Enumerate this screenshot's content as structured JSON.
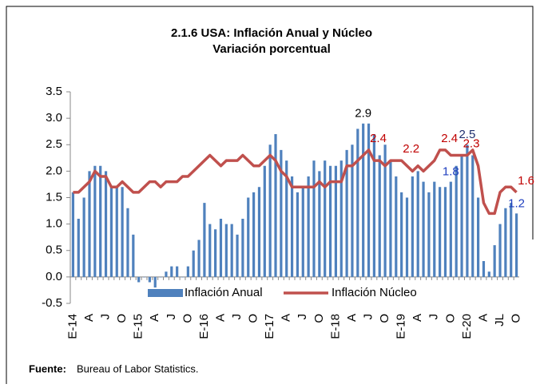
{
  "chart_data": {
    "type": "bar-line",
    "title": "2.1.6  USA: Inflación Anual y Núcleo",
    "subtitle": "Variación porcentual",
    "categories": [
      "E-14",
      null,
      null,
      "A",
      null,
      null,
      "J",
      null,
      null,
      "O",
      null,
      null,
      "E-15",
      null,
      null,
      "A",
      null,
      null,
      "J",
      null,
      null,
      "O",
      null,
      null,
      "E-16",
      null,
      null,
      "A",
      null,
      null,
      "J",
      null,
      null,
      "O",
      null,
      null,
      "E-17",
      null,
      null,
      "A",
      null,
      null,
      "J",
      null,
      null,
      "O",
      null,
      null,
      "E-18",
      null,
      null,
      "A",
      null,
      null,
      "J",
      null,
      null,
      "O",
      null,
      null,
      "E-19",
      null,
      null,
      "A",
      null,
      null,
      "J",
      null,
      null,
      "O",
      null,
      null,
      "E-20",
      null,
      null,
      "A",
      null,
      null,
      "JL",
      null,
      null,
      "O"
    ],
    "series": [
      {
        "name": "Inflación Anual",
        "type": "bar",
        "color": "#4f81bd",
        "values": [
          1.6,
          1.1,
          1.5,
          2.0,
          2.1,
          2.1,
          2.0,
          1.7,
          1.7,
          1.7,
          1.3,
          0.8,
          -0.1,
          0.0,
          -0.1,
          -0.2,
          0.0,
          0.1,
          0.2,
          0.2,
          0.0,
          0.2,
          0.5,
          0.7,
          1.4,
          1.0,
          0.9,
          1.1,
          1.0,
          1.0,
          0.8,
          1.1,
          1.5,
          1.6,
          1.7,
          2.1,
          2.5,
          2.7,
          2.4,
          2.2,
          1.9,
          1.6,
          1.7,
          1.9,
          2.2,
          2.0,
          2.2,
          2.1,
          2.1,
          2.2,
          2.4,
          2.5,
          2.8,
          2.9,
          2.9,
          2.7,
          2.3,
          2.5,
          2.2,
          1.9,
          1.6,
          1.5,
          1.9,
          2.0,
          1.8,
          1.6,
          1.8,
          1.7,
          1.7,
          1.8,
          2.1,
          2.3,
          2.5,
          2.3,
          1.5,
          0.3,
          0.1,
          0.6,
          1.0,
          1.3,
          1.4,
          1.2
        ],
        "value_labels": [
          null,
          null,
          null,
          null,
          null,
          null,
          null,
          null,
          null,
          null,
          null,
          null,
          null,
          null,
          null,
          null,
          null,
          null,
          null,
          null,
          null,
          null,
          null,
          null,
          null,
          null,
          null,
          null,
          null,
          null,
          null,
          null,
          null,
          null,
          null,
          null,
          null,
          null,
          null,
          null,
          null,
          null,
          null,
          null,
          null,
          null,
          null,
          null,
          null,
          null,
          null,
          null,
          null,
          "2.9",
          null,
          null,
          null,
          null,
          null,
          null,
          null,
          null,
          null,
          null,
          null,
          null,
          null,
          null,
          null,
          "1.8",
          null,
          null,
          "2.5",
          null,
          null,
          null,
          null,
          null,
          null,
          null,
          null,
          "1.2"
        ],
        "value_label_colors": [
          null,
          null,
          null,
          null,
          null,
          null,
          null,
          null,
          null,
          null,
          null,
          null,
          null,
          null,
          null,
          null,
          null,
          null,
          null,
          null,
          null,
          null,
          null,
          null,
          null,
          null,
          null,
          null,
          null,
          null,
          null,
          null,
          null,
          null,
          null,
          null,
          null,
          null,
          null,
          null,
          null,
          null,
          null,
          null,
          null,
          null,
          null,
          null,
          null,
          null,
          null,
          null,
          null,
          "#000000",
          null,
          null,
          null,
          null,
          null,
          null,
          null,
          null,
          null,
          null,
          null,
          null,
          null,
          null,
          null,
          "#1f3fbf",
          null,
          null,
          "#1f2f6f",
          null,
          null,
          null,
          null,
          null,
          null,
          null,
          null,
          "#1f3fbf"
        ]
      },
      {
        "name": "Inflación Núcleo",
        "type": "line",
        "color": "#c0504d",
        "values": [
          1.6,
          1.6,
          1.7,
          1.8,
          2.0,
          1.9,
          1.9,
          1.7,
          1.7,
          1.8,
          1.7,
          1.6,
          1.6,
          1.7,
          1.8,
          1.8,
          1.7,
          1.8,
          1.8,
          1.8,
          1.9,
          1.9,
          2.0,
          2.1,
          2.2,
          2.3,
          2.2,
          2.1,
          2.2,
          2.2,
          2.2,
          2.3,
          2.2,
          2.1,
          2.1,
          2.2,
          2.3,
          2.2,
          2.0,
          1.9,
          1.7,
          1.7,
          1.7,
          1.7,
          1.7,
          1.8,
          1.7,
          1.8,
          1.8,
          1.8,
          2.1,
          2.1,
          2.2,
          2.3,
          2.4,
          2.2,
          2.2,
          2.1,
          2.2,
          2.2,
          2.2,
          2.1,
          2.0,
          2.1,
          2.0,
          2.1,
          2.2,
          2.4,
          2.4,
          2.3,
          2.3,
          2.3,
          2.3,
          2.4,
          2.1,
          1.4,
          1.2,
          1.2,
          1.6,
          1.7,
          1.7,
          1.6
        ],
        "value_labels": [
          null,
          null,
          null,
          null,
          null,
          null,
          null,
          null,
          null,
          null,
          null,
          null,
          null,
          null,
          null,
          null,
          null,
          null,
          null,
          null,
          null,
          null,
          null,
          null,
          null,
          null,
          null,
          null,
          null,
          null,
          null,
          null,
          null,
          null,
          null,
          null,
          null,
          null,
          null,
          null,
          null,
          null,
          null,
          null,
          null,
          null,
          null,
          null,
          null,
          null,
          null,
          null,
          null,
          null,
          "2.4",
          null,
          null,
          null,
          null,
          null,
          "2.2",
          null,
          null,
          null,
          null,
          null,
          null,
          "2.4",
          null,
          null,
          null,
          "2.3",
          null,
          null,
          null,
          null,
          null,
          null,
          null,
          null,
          null,
          "1.6"
        ],
        "value_label_colors": [
          null,
          null,
          null,
          null,
          null,
          null,
          null,
          null,
          null,
          null,
          null,
          null,
          null,
          null,
          null,
          null,
          null,
          null,
          null,
          null,
          null,
          null,
          null,
          null,
          null,
          null,
          null,
          null,
          null,
          null,
          null,
          null,
          null,
          null,
          null,
          null,
          null,
          null,
          null,
          null,
          null,
          null,
          null,
          null,
          null,
          null,
          null,
          null,
          null,
          null,
          null,
          null,
          null,
          null,
          "#c00000",
          null,
          null,
          null,
          null,
          null,
          "#c00000",
          null,
          null,
          null,
          null,
          null,
          null,
          "#c00000",
          null,
          null,
          null,
          "#c00000",
          null,
          null,
          null,
          null,
          null,
          null,
          null,
          null,
          null,
          "#c00000"
        ]
      }
    ],
    "ylim": [
      -0.5,
      3.5
    ],
    "yticks": [
      -0.5,
      {
        "value": 0,
        "label": "0.0"
      },
      0.5,
      {
        "value": 1,
        "label": "1.0"
      },
      1.5,
      {
        "value": 2,
        "label": "2.0"
      },
      2.5,
      {
        "value": 3,
        "label": "3.0"
      },
      3.5
    ],
    "legend": "bottom",
    "grid": false
  },
  "source": {
    "label": "Fuente:",
    "text": "Bureau of Labor Statistics."
  }
}
